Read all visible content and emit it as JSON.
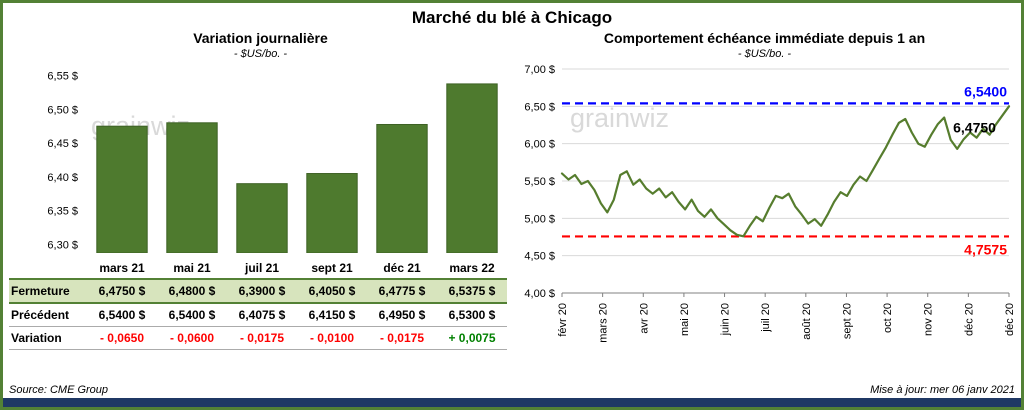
{
  "title": "Marché du blé à Chicago",
  "watermark": "grainwiz",
  "footer": {
    "source": "Source: CME Group",
    "updated": "Mise à jour: mer 06 janv 2021"
  },
  "colors": {
    "bar_green": "#4e7a2e",
    "bar_edge": "#3d6124",
    "line_green": "#567d2e",
    "blue": "#0000ff",
    "red": "#ff0000",
    "variation_green": "#008000",
    "grid_gray": "#d9d9d9",
    "axis_gray": "#808080",
    "watermark_gray": "#d9d9d9",
    "table_green_bg": "#d7e4bd",
    "navy": "#1f3864",
    "frame_green": "#538135"
  },
  "left": {
    "title": "Variation  journalière",
    "subtitle": "- $US/bo. -",
    "table": {
      "rows": [
        {
          "label": "Fermeture",
          "style": "fermeture",
          "values": [
            "6,4750  $",
            "6,4800  $",
            "6,3900  $",
            "6,4050  $",
            "6,4775  $",
            "6,5375  $"
          ],
          "value_colors": [
            "#000000",
            "#000000",
            "#000000",
            "#000000",
            "#000000",
            "#000000"
          ]
        },
        {
          "label": "Précédent",
          "style": "precedent",
          "values": [
            "6,5400  $",
            "6,5400  $",
            "6,4075  $",
            "6,4150  $",
            "6,4950  $",
            "6,5300  $"
          ],
          "value_colors": [
            "#000000",
            "#000000",
            "#000000",
            "#000000",
            "#000000",
            "#000000"
          ]
        },
        {
          "label": "Variation",
          "style": "variation",
          "values": [
            "- 0,0650",
            "- 0,0600",
            "- 0,0175",
            "- 0,0100",
            "- 0,0175",
            "+ 0,0075"
          ],
          "value_colors": [
            "#ff0000",
            "#ff0000",
            "#ff0000",
            "#ff0000",
            "#ff0000",
            "#008000"
          ]
        }
      ]
    }
  },
  "right": {
    "title": "Comportement  échéance  immédiate  depuis  1  an",
    "subtitle": "- $US/bo. -"
  },
  "chart_data": [
    {
      "type": "bar",
      "title": "Variation journalière",
      "ylabel": "$US/bo.",
      "categories": [
        "mars 21",
        "mai 21",
        "juil 21",
        "sept 21",
        "déc 21",
        "mars 22"
      ],
      "values": [
        6.475,
        6.48,
        6.39,
        6.405,
        6.4775,
        6.5375
      ],
      "ylim": [
        6.2875,
        6.5625
      ],
      "yticks": [
        6.3,
        6.35,
        6.4,
        6.45,
        6.5,
        6.55
      ],
      "ytick_labels": [
        "6,30 $",
        "6,35 $",
        "6,40 $",
        "6,45 $",
        "6,50 $",
        "6,55 $"
      ],
      "grid": false
    },
    {
      "type": "line",
      "title": "Comportement échéance immédiate depuis 1 an",
      "ylabel": "$US/bo.",
      "x_tick_labels": [
        "févr 20",
        "mars 20",
        "avr 20",
        "mai 20",
        "juin 20",
        "juil 20",
        "août 20",
        "sept 20",
        "oct 20",
        "nov 20",
        "déc 20",
        "déc 20"
      ],
      "values": [
        5.6,
        5.52,
        5.58,
        5.46,
        5.5,
        5.38,
        5.2,
        5.08,
        5.25,
        5.58,
        5.63,
        5.45,
        5.52,
        5.4,
        5.33,
        5.4,
        5.28,
        5.35,
        5.22,
        5.12,
        5.25,
        5.1,
        5.02,
        5.12,
        5.0,
        4.92,
        4.84,
        4.78,
        4.76,
        4.9,
        5.02,
        4.96,
        5.14,
        5.3,
        5.27,
        5.33,
        5.16,
        5.05,
        4.93,
        4.99,
        4.9,
        5.05,
        5.22,
        5.35,
        5.3,
        5.45,
        5.56,
        5.5,
        5.65,
        5.8,
        5.95,
        6.12,
        6.28,
        6.33,
        6.15,
        6.0,
        5.96,
        6.12,
        6.26,
        6.35,
        6.05,
        5.93,
        6.06,
        6.15,
        6.08,
        6.2,
        6.12,
        6.26,
        6.38,
        6.5
      ],
      "ylim": [
        4.0,
        7.0
      ],
      "yticks": [
        4.0,
        4.5,
        5.0,
        5.5,
        6.0,
        6.5,
        7.0
      ],
      "ytick_labels": [
        "4,00 $",
        "4,50 $",
        "5,00 $",
        "5,50 $",
        "6,00 $",
        "6,50 $",
        "7,00 $"
      ],
      "grid": true,
      "reference_lines": [
        {
          "value": 6.54,
          "label": "6,5400",
          "color": "#0000ff",
          "style": "dashed"
        },
        {
          "value": 4.7575,
          "label": "4,7575",
          "color": "#ff0000",
          "style": "dashed"
        }
      ],
      "last_label": {
        "text": "6,4750",
        "value": 6.15,
        "x_frac": 0.875
      }
    }
  ]
}
